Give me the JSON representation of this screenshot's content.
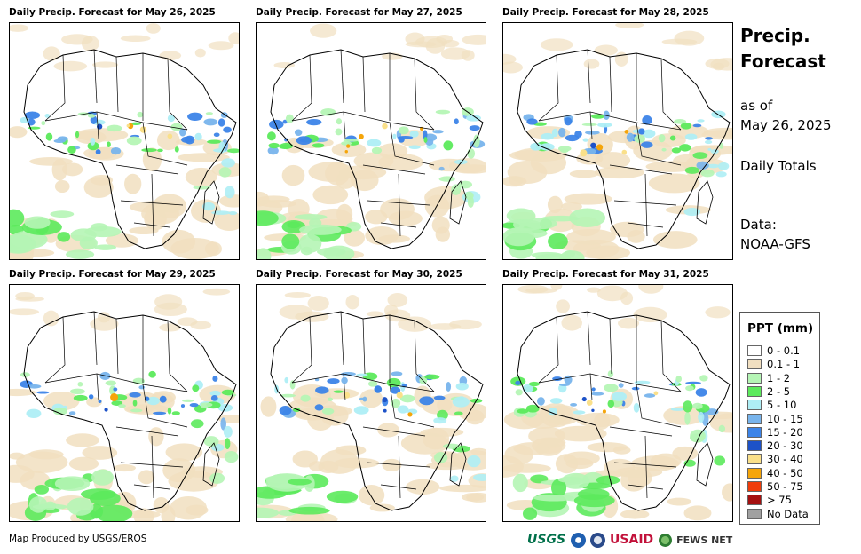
{
  "panels": [
    {
      "title": "Daily Precip. Forecast for May 26, 2025"
    },
    {
      "title": "Daily Precip. Forecast for May 27, 2025"
    },
    {
      "title": "Daily Precip. Forecast for May 28, 2025"
    },
    {
      "title": "Daily Precip. Forecast for May 29, 2025"
    },
    {
      "title": "Daily Precip. Forecast for May 30, 2025"
    },
    {
      "title": "Daily Precip. Forecast for May 31, 2025"
    }
  ],
  "sidebar": {
    "title_line1": "Precip.",
    "title_line2": "Forecast",
    "asof_line1": "as of",
    "asof_line2": "May 26, 2025",
    "totals": "Daily Totals",
    "data_line1": "Data:",
    "data_line2": "NOAA-GFS"
  },
  "legend": {
    "title": "PPT (mm)",
    "items": [
      {
        "label": "0 - 0.1",
        "color": "#ffffff"
      },
      {
        "label": "0.1 - 1",
        "color": "#f1dfc0"
      },
      {
        "label": "1 - 2",
        "color": "#b5f5b5"
      },
      {
        "label": "2 - 5",
        "color": "#5cea5c"
      },
      {
        "label": "5 - 10",
        "color": "#aeeef5"
      },
      {
        "label": "10 - 15",
        "color": "#78b4ec"
      },
      {
        "label": "15 - 20",
        "color": "#3c84e8"
      },
      {
        "label": "20 - 30",
        "color": "#1d52c8"
      },
      {
        "label": "30 - 40",
        "color": "#fae08a"
      },
      {
        "label": "40 - 50",
        "color": "#f5a50a"
      },
      {
        "label": "50 - 75",
        "color": "#f03c0a"
      },
      {
        "label": "> 75",
        "color": "#a51010"
      },
      {
        "label": "No Data",
        "color": "#a0a0a0"
      }
    ]
  },
  "footer": {
    "credit": "Map Produced by USGS/EROS",
    "logos": {
      "usgs": "USGS",
      "usaid": "USAID",
      "fews": "FEWS NET"
    }
  }
}
